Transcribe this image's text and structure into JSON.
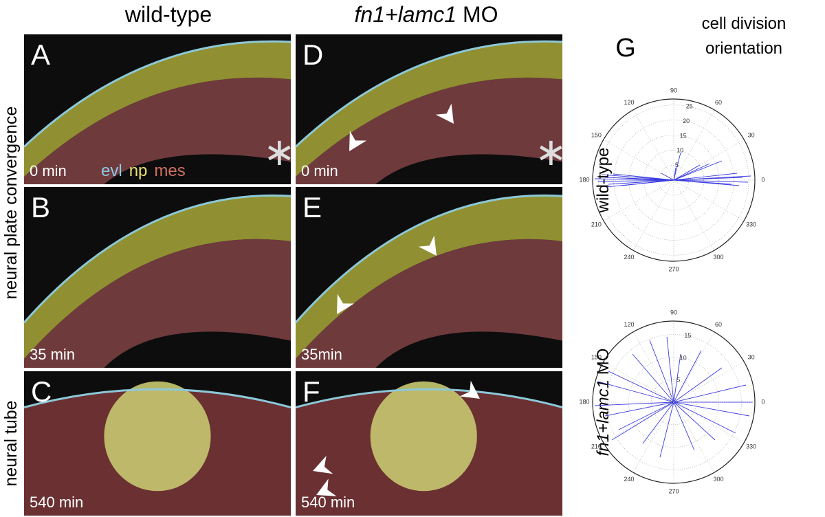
{
  "columns": [
    {
      "label": "wild-type"
    },
    {
      "label_italic": "fn1+lamc1",
      "label": "MO"
    }
  ],
  "rows": [
    "neural plate convergence",
    "neural tube"
  ],
  "panels": [
    {
      "letter": "A",
      "time": "0 min"
    },
    {
      "letter": "B",
      "time": "35 min"
    },
    {
      "letter": "C",
      "time": "540 min"
    },
    {
      "letter": "D",
      "time": "0 min"
    },
    {
      "letter": "E",
      "time": "35min"
    },
    {
      "letter": "F",
      "time": "540 min"
    }
  ],
  "legend": [
    "evl",
    "np",
    "mes"
  ],
  "polar": {
    "letter": "G",
    "title": [
      "cell division",
      "orientation"
    ],
    "angle_ticks": [
      90,
      60,
      30,
      0,
      330,
      300,
      270,
      240,
      210,
      180,
      150,
      120
    ],
    "plots": [
      {
        "label": "wild-type",
        "rlim": [
          0,
          27
        ],
        "rticks": [
          5,
          10,
          15,
          20,
          25
        ]
      },
      {
        "label_italic": "fn1+lamc1",
        "label": "MO",
        "rlim": [
          0,
          18
        ],
        "rticks": [
          5,
          10,
          15
        ]
      }
    ]
  }
}
